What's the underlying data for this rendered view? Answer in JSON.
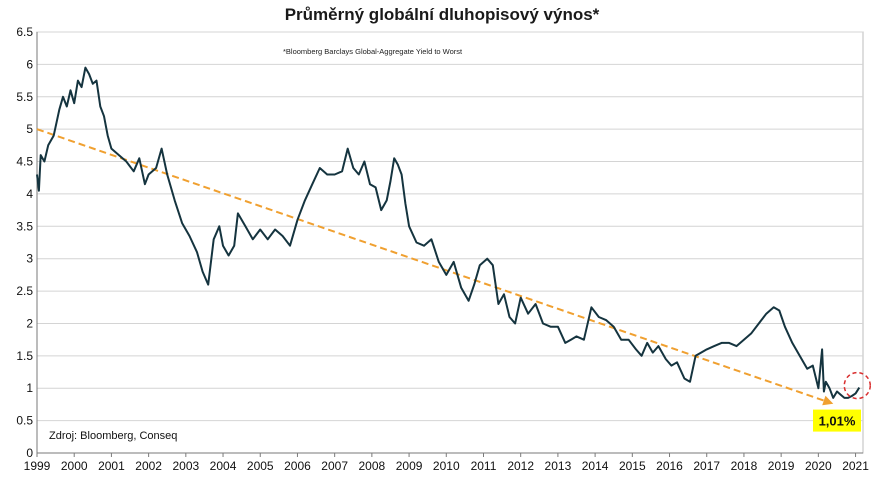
{
  "chart_data": {
    "type": "line",
    "title": "Průměrný globální dluhopisový výnos*",
    "subtitle": "*Bloomberg  Barclays  Global-Aggregate  Yield to Worst",
    "source": "Zdroj: Bloomberg, Conseq",
    "ylim": [
      0,
      6.5
    ],
    "xlim": [
      1999,
      2021.2
    ],
    "y_ticks": [
      "0",
      "0.5",
      "1",
      "1.5",
      "2",
      "2.5",
      "3",
      "3.5",
      "4",
      "4.5",
      "5",
      "5.5",
      "6",
      "6.5"
    ],
    "x_ticks": [
      "1999",
      "2000",
      "2001",
      "2002",
      "2003",
      "2004",
      "2005",
      "2006",
      "2007",
      "2008",
      "2009",
      "2010",
      "2011",
      "2012",
      "2013",
      "2014",
      "2015",
      "2016",
      "2017",
      "2018",
      "2019",
      "2020",
      "2021"
    ],
    "grid": true,
    "series": [
      {
        "color": "#15343f",
        "x": [
          1999.0,
          1999.05,
          1999.1,
          1999.2,
          1999.3,
          1999.45,
          1999.6,
          1999.7,
          1999.8,
          1999.9,
          2000.0,
          2000.1,
          2000.2,
          2000.3,
          2000.4,
          2000.5,
          2000.6,
          2000.7,
          2000.8,
          2000.9,
          2001.0,
          2001.2,
          2001.4,
          2001.6,
          2001.75,
          2001.9,
          2002.0,
          2002.2,
          2002.35,
          2002.5,
          2002.7,
          2002.9,
          2003.1,
          2003.3,
          2003.45,
          2003.6,
          2003.75,
          2003.9,
          2004.0,
          2004.15,
          2004.3,
          2004.4,
          2004.6,
          2004.8,
          2005.0,
          2005.2,
          2005.4,
          2005.6,
          2005.8,
          2006.0,
          2006.2,
          2006.4,
          2006.6,
          2006.8,
          2007.0,
          2007.2,
          2007.35,
          2007.5,
          2007.65,
          2007.8,
          2007.95,
          2008.1,
          2008.25,
          2008.4,
          2008.5,
          2008.6,
          2008.7,
          2008.8,
          2008.9,
          2009.0,
          2009.2,
          2009.4,
          2009.6,
          2009.8,
          2010.0,
          2010.2,
          2010.4,
          2010.6,
          2010.75,
          2010.9,
          2011.1,
          2011.25,
          2011.4,
          2011.55,
          2011.7,
          2011.85,
          2012.0,
          2012.2,
          2012.4,
          2012.6,
          2012.8,
          2013.0,
          2013.2,
          2013.35,
          2013.5,
          2013.7,
          2013.9,
          2014.1,
          2014.3,
          2014.5,
          2014.7,
          2014.9,
          2015.1,
          2015.25,
          2015.4,
          2015.55,
          2015.7,
          2015.9,
          2016.05,
          2016.2,
          2016.4,
          2016.55,
          2016.7,
          2016.85,
          2017.0,
          2017.2,
          2017.4,
          2017.6,
          2017.8,
          2018.0,
          2018.2,
          2018.4,
          2018.6,
          2018.8,
          2018.95,
          2019.1,
          2019.3,
          2019.5,
          2019.7,
          2019.85,
          2020.0,
          2020.1,
          2020.15,
          2020.2,
          2020.25,
          2020.3,
          2020.4,
          2020.5,
          2020.6,
          2020.7,
          2020.8,
          2020.9,
          2021.0,
          2021.1
        ],
        "values": [
          4.3,
          4.05,
          4.6,
          4.5,
          4.75,
          4.9,
          5.3,
          5.5,
          5.35,
          5.6,
          5.4,
          5.75,
          5.65,
          5.95,
          5.85,
          5.7,
          5.75,
          5.35,
          5.2,
          4.9,
          4.7,
          4.6,
          4.5,
          4.35,
          4.55,
          4.15,
          4.3,
          4.4,
          4.7,
          4.3,
          3.9,
          3.55,
          3.35,
          3.1,
          2.8,
          2.6,
          3.3,
          3.5,
          3.2,
          3.05,
          3.2,
          3.7,
          3.5,
          3.3,
          3.45,
          3.3,
          3.45,
          3.35,
          3.2,
          3.6,
          3.9,
          4.15,
          4.4,
          4.3,
          4.3,
          4.35,
          4.7,
          4.4,
          4.3,
          4.5,
          4.15,
          4.1,
          3.75,
          3.9,
          4.2,
          4.55,
          4.45,
          4.3,
          3.85,
          3.5,
          3.25,
          3.2,
          3.3,
          2.95,
          2.75,
          2.95,
          2.55,
          2.35,
          2.6,
          2.9,
          3.0,
          2.9,
          2.3,
          2.45,
          2.1,
          2.0,
          2.4,
          2.15,
          2.3,
          2.0,
          1.95,
          1.95,
          1.7,
          1.75,
          1.8,
          1.75,
          2.25,
          2.1,
          2.05,
          1.95,
          1.75,
          1.75,
          1.6,
          1.5,
          1.7,
          1.55,
          1.65,
          1.45,
          1.35,
          1.4,
          1.15,
          1.1,
          1.5,
          1.55,
          1.6,
          1.65,
          1.7,
          1.7,
          1.65,
          1.75,
          1.85,
          2.0,
          2.15,
          2.25,
          2.2,
          1.95,
          1.7,
          1.5,
          1.3,
          1.35,
          1.0,
          1.6,
          0.95,
          1.1,
          1.05,
          1.0,
          0.85,
          0.95,
          0.9,
          0.85,
          0.85,
          0.88,
          0.92,
          1.01
        ]
      }
    ],
    "trend": {
      "color": "#f0a030",
      "x": [
        1999.0,
        2020.3
      ],
      "values": [
        5.0,
        0.78
      ]
    },
    "callout": {
      "label": "1,01%",
      "x": 2021.1,
      "value": 1.01,
      "circle_color": "#d93030",
      "box_color": "#ffff00"
    }
  }
}
